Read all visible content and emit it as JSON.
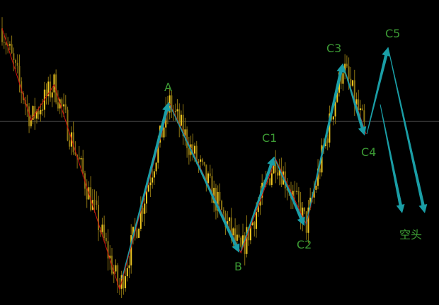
{
  "chart_data": {
    "type": "candlestick",
    "title": "",
    "axes_shown": false,
    "grid": false,
    "price_scale": "relative (0-100, no axis printed)",
    "trend_waypoints": [
      {
        "bar": 0,
        "price": 90.7
      },
      {
        "bar": 15,
        "price": 60.6
      },
      {
        "bar": 27,
        "price": 72.2
      },
      {
        "bar": 61,
        "price": 5.1
      },
      {
        "bar": 87,
        "price": 66.0
      },
      {
        "bar": 124,
        "price": 17.1
      },
      {
        "bar": 142,
        "price": 47.9
      },
      {
        "bar": 158,
        "price": 26.4
      },
      {
        "bar": 177,
        "price": 78.7
      },
      {
        "bar": 189,
        "price": 56.0
      }
    ],
    "horizontal_line_price": 60.2,
    "wave_labels": [
      "A",
      "B",
      "C1",
      "C2",
      "C3",
      "C4",
      "C5"
    ],
    "forecast_label": "空头"
  },
  "colors": {
    "background": "#000000",
    "candle_body": "#f0c820",
    "candle_shadow": "#8c7412",
    "zigzag": "#d01010",
    "arrows": "#1a9ea6",
    "labels": "#3c9a34",
    "level_line": "#5a5a5a"
  }
}
